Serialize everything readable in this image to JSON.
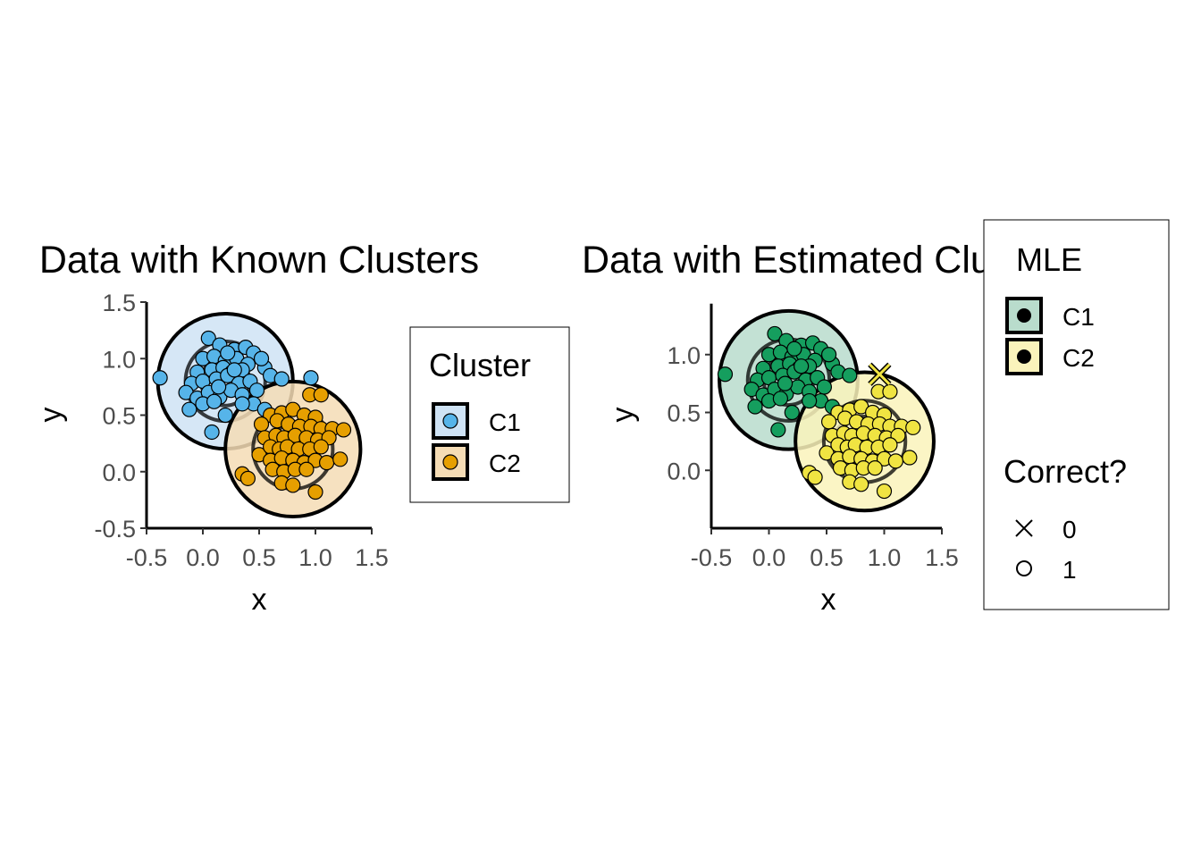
{
  "chart_data": [
    {
      "type": "scatter",
      "title": "Data with Known Clusters",
      "xlabel": "x",
      "ylabel": "y",
      "xlim": [
        -0.5,
        1.5
      ],
      "ylim": [
        -0.5,
        1.5
      ],
      "x_ticks": [
        "-0.5",
        "0.0",
        "0.5",
        "1.0",
        "1.5"
      ],
      "y_ticks": [
        "-0.5",
        "0.0",
        "0.5",
        "1.0",
        "1.5"
      ],
      "grid": false,
      "legend": {
        "title": "Cluster",
        "placement": "right",
        "entries": [
          "C1",
          "C2"
        ]
      },
      "ellipses": [
        {
          "cluster": "C1",
          "center": [
            0.2,
            0.8
          ],
          "radius": 0.6,
          "fill": "#cfe3f5"
        },
        {
          "cluster": "C2",
          "center": [
            0.8,
            0.2
          ],
          "radius": 0.6,
          "fill": "#f5dcb5"
        }
      ],
      "series": [
        {
          "name": "C1",
          "color": "#56b4e9",
          "points": [
            [
              0.05,
              1.18
            ],
            [
              0.15,
              1.12
            ],
            [
              0.28,
              1.08
            ],
            [
              0.38,
              1.1
            ],
            [
              0.45,
              1.05
            ],
            [
              0.0,
              1.0
            ],
            [
              0.1,
              1.02
            ],
            [
              0.2,
              0.98
            ],
            [
              0.3,
              1.0
            ],
            [
              0.4,
              0.95
            ],
            [
              0.22,
              1.05
            ],
            [
              -0.05,
              0.88
            ],
            [
              0.08,
              0.9
            ],
            [
              0.18,
              0.92
            ],
            [
              0.26,
              0.88
            ],
            [
              0.35,
              0.9
            ],
            [
              0.55,
              0.92
            ],
            [
              0.6,
              0.85
            ],
            [
              -0.1,
              0.78
            ],
            [
              0.0,
              0.8
            ],
            [
              0.12,
              0.82
            ],
            [
              0.22,
              0.85
            ],
            [
              0.32,
              0.78
            ],
            [
              0.42,
              0.8
            ],
            [
              0.48,
              0.72
            ],
            [
              -0.38,
              0.83
            ],
            [
              0.7,
              0.82
            ],
            [
              0.96,
              0.83
            ],
            [
              -0.15,
              0.7
            ],
            [
              -0.05,
              0.65
            ],
            [
              0.05,
              0.7
            ],
            [
              0.15,
              0.66
            ],
            [
              0.25,
              0.72
            ],
            [
              0.35,
              0.68
            ],
            [
              0.45,
              0.6
            ],
            [
              0.55,
              0.55
            ],
            [
              -0.12,
              0.55
            ],
            [
              0.0,
              0.6
            ],
            [
              0.1,
              0.62
            ],
            [
              0.2,
              0.5
            ],
            [
              0.08,
              0.35
            ],
            [
              0.35,
              0.6
            ],
            [
              0.28,
              0.9
            ],
            [
              0.52,
              1.0
            ],
            [
              0.14,
              0.75
            ]
          ]
        },
        {
          "name": "C2",
          "color": "#e69f00",
          "points": [
            [
              0.95,
              0.68
            ],
            [
              1.05,
              0.68
            ],
            [
              0.6,
              0.5
            ],
            [
              0.7,
              0.52
            ],
            [
              0.8,
              0.55
            ],
            [
              0.9,
              0.5
            ],
            [
              1.0,
              0.48
            ],
            [
              0.52,
              0.42
            ],
            [
              0.66,
              0.45
            ],
            [
              0.76,
              0.42
            ],
            [
              0.86,
              0.4
            ],
            [
              0.96,
              0.4
            ],
            [
              1.05,
              0.38
            ],
            [
              1.15,
              0.38
            ],
            [
              0.55,
              0.3
            ],
            [
              0.65,
              0.32
            ],
            [
              0.72,
              0.3
            ],
            [
              0.82,
              0.32
            ],
            [
              0.92,
              0.3
            ],
            [
              1.02,
              0.28
            ],
            [
              1.12,
              0.3
            ],
            [
              1.25,
              0.37
            ],
            [
              0.5,
              0.15
            ],
            [
              0.6,
              0.22
            ],
            [
              0.68,
              0.2
            ],
            [
              0.75,
              0.22
            ],
            [
              0.85,
              0.2
            ],
            [
              0.95,
              0.2
            ],
            [
              1.05,
              0.22
            ],
            [
              0.6,
              0.1
            ],
            [
              0.7,
              0.12
            ],
            [
              0.8,
              0.1
            ],
            [
              0.9,
              0.08
            ],
            [
              1.0,
              0.1
            ],
            [
              1.1,
              0.08
            ],
            [
              1.22,
              0.11
            ],
            [
              0.62,
              0.02
            ],
            [
              0.72,
              0.0
            ],
            [
              0.82,
              0.02
            ],
            [
              0.92,
              0.02
            ],
            [
              0.35,
              -0.02
            ],
            [
              0.4,
              -0.06
            ],
            [
              0.7,
              -0.1
            ],
            [
              0.8,
              -0.12
            ],
            [
              1.0,
              -0.18
            ]
          ]
        }
      ]
    },
    {
      "type": "scatter",
      "title": "Data with Estimated Clusters",
      "xlabel": "x",
      "ylabel": "y",
      "xlim": [
        -0.5,
        1.5
      ],
      "ylim": [
        -0.5,
        1.5
      ],
      "x_ticks": [
        "-0.5",
        "0.0",
        "0.5",
        "1.0",
        "1.5"
      ],
      "y_ticks": [
        "0.0",
        "0.5",
        "1.0"
      ],
      "grid": false,
      "legend": [
        {
          "title": "MLE",
          "placement": "right",
          "entries": [
            "C1",
            "C2"
          ]
        },
        {
          "title": "Correct?",
          "placement": "right",
          "entries": [
            "0",
            "1"
          ]
        }
      ],
      "ellipses": [
        {
          "cluster": "C1",
          "center": [
            0.17,
            0.78
          ],
          "radius": 0.6,
          "fill": "#b9dccc"
        },
        {
          "cluster": "C2",
          "center": [
            0.83,
            0.25
          ],
          "radius": 0.6,
          "fill": "#faf3bb"
        }
      ],
      "series": [
        {
          "name": "C1",
          "color": "#159e5e",
          "points": [
            [
              0.05,
              1.18
            ],
            [
              0.15,
              1.12
            ],
            [
              0.28,
              1.08
            ],
            [
              0.38,
              1.1
            ],
            [
              0.45,
              1.05
            ],
            [
              0.0,
              1.0
            ],
            [
              0.1,
              1.02
            ],
            [
              0.2,
              0.98
            ],
            [
              0.3,
              1.0
            ],
            [
              0.4,
              0.95
            ],
            [
              0.22,
              1.05
            ],
            [
              -0.05,
              0.88
            ],
            [
              0.08,
              0.9
            ],
            [
              0.18,
              0.92
            ],
            [
              0.26,
              0.88
            ],
            [
              0.35,
              0.9
            ],
            [
              0.55,
              0.92
            ],
            [
              0.6,
              0.85
            ],
            [
              -0.1,
              0.78
            ],
            [
              0.0,
              0.8
            ],
            [
              0.12,
              0.82
            ],
            [
              0.22,
              0.85
            ],
            [
              0.32,
              0.78
            ],
            [
              0.42,
              0.8
            ],
            [
              0.48,
              0.72
            ],
            [
              -0.38,
              0.83
            ],
            [
              0.7,
              0.82
            ],
            [
              -0.15,
              0.7
            ],
            [
              -0.05,
              0.65
            ],
            [
              0.05,
              0.7
            ],
            [
              0.15,
              0.66
            ],
            [
              0.25,
              0.72
            ],
            [
              0.35,
              0.68
            ],
            [
              0.45,
              0.6
            ],
            [
              0.55,
              0.55
            ],
            [
              -0.12,
              0.55
            ],
            [
              0.0,
              0.6
            ],
            [
              0.1,
              0.62
            ],
            [
              0.2,
              0.5
            ],
            [
              0.08,
              0.35
            ],
            [
              0.35,
              0.6
            ],
            [
              0.28,
              0.9
            ],
            [
              0.52,
              1.0
            ],
            [
              0.14,
              0.75
            ]
          ]
        },
        {
          "name": "C2",
          "color": "#f0e442",
          "points": [
            [
              0.95,
              0.68
            ],
            [
              1.05,
              0.68
            ],
            [
              0.6,
              0.5
            ],
            [
              0.7,
              0.52
            ],
            [
              0.8,
              0.55
            ],
            [
              0.9,
              0.5
            ],
            [
              1.0,
              0.48
            ],
            [
              0.52,
              0.42
            ],
            [
              0.66,
              0.45
            ],
            [
              0.76,
              0.42
            ],
            [
              0.86,
              0.4
            ],
            [
              0.96,
              0.4
            ],
            [
              1.05,
              0.38
            ],
            [
              1.15,
              0.38
            ],
            [
              0.55,
              0.3
            ],
            [
              0.65,
              0.32
            ],
            [
              0.72,
              0.3
            ],
            [
              0.82,
              0.32
            ],
            [
              0.92,
              0.3
            ],
            [
              1.02,
              0.28
            ],
            [
              1.12,
              0.3
            ],
            [
              1.25,
              0.37
            ],
            [
              0.5,
              0.15
            ],
            [
              0.6,
              0.22
            ],
            [
              0.68,
              0.2
            ],
            [
              0.75,
              0.22
            ],
            [
              0.85,
              0.2
            ],
            [
              0.95,
              0.2
            ],
            [
              1.05,
              0.22
            ],
            [
              0.6,
              0.1
            ],
            [
              0.7,
              0.12
            ],
            [
              0.8,
              0.1
            ],
            [
              0.9,
              0.08
            ],
            [
              1.0,
              0.1
            ],
            [
              1.1,
              0.08
            ],
            [
              1.22,
              0.11
            ],
            [
              0.62,
              0.02
            ],
            [
              0.72,
              0.0
            ],
            [
              0.82,
              0.02
            ],
            [
              0.92,
              0.02
            ],
            [
              0.35,
              -0.02
            ],
            [
              0.4,
              -0.06
            ],
            [
              0.7,
              -0.1
            ],
            [
              0.8,
              -0.12
            ],
            [
              1.0,
              -0.18
            ]
          ]
        }
      ],
      "misclassified": [
        {
          "cluster": "C2",
          "point": [
            0.96,
            0.83
          ],
          "correct": 0
        }
      ]
    }
  ]
}
